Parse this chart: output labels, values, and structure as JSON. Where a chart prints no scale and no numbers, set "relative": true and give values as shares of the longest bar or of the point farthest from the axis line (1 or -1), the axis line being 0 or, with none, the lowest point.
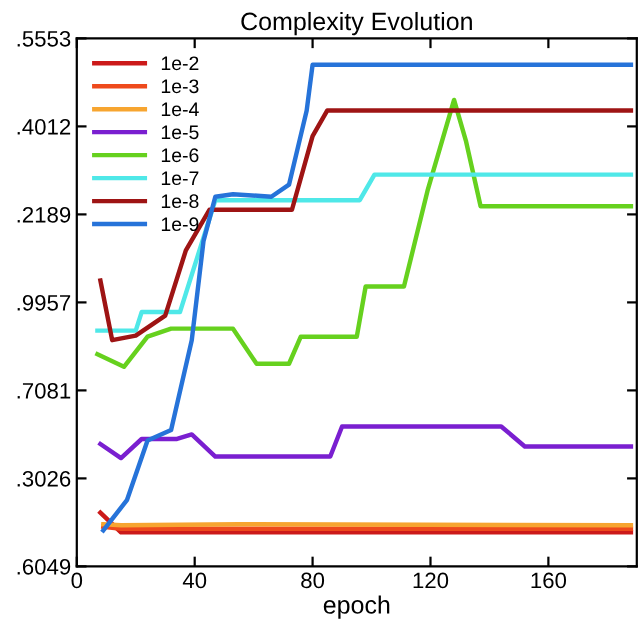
{
  "chart_data": {
    "type": "line",
    "title": "Complexity Evolution",
    "xlabel": "epoch",
    "xlim": [
      0,
      190
    ],
    "xticks": [
      0,
      40,
      80,
      120,
      160
    ],
    "relative": true,
    "annotations": [
      ".6049",
      ".3026",
      ".7081",
      ".9957",
      ".2189",
      ".4012",
      ".5553"
    ],
    "grid": false,
    "legend": "top left",
    "marker": "none",
    "line_style": "solid",
    "series": [
      {
        "name": "1e-2",
        "color": "#cc1a1a",
        "x": [
          8,
          15,
          188
        ],
        "values": [
          0.107,
          0.068,
          0.068
        ]
      },
      {
        "name": "1e-3",
        "color": "#ee4a1c",
        "x": [
          9,
          15,
          188
        ],
        "values": [
          0.079,
          0.075,
          0.075
        ]
      },
      {
        "name": "1e-4",
        "color": "#f7a530",
        "x": [
          9,
          15,
          55,
          188
        ],
        "values": [
          0.084,
          0.082,
          0.084,
          0.082
        ]
      },
      {
        "name": "1e-5",
        "color": "#7a1fd0",
        "x": [
          8,
          15,
          22,
          34,
          39,
          47,
          86,
          90,
          144,
          152,
          188
        ],
        "values": [
          0.244,
          0.216,
          0.254,
          0.254,
          0.263,
          0.219,
          0.219,
          0.279,
          0.279,
          0.239,
          0.239
        ]
      },
      {
        "name": "1e-6",
        "color": "#66d11e",
        "x": [
          7,
          16,
          24,
          32,
          53,
          61,
          72,
          76,
          95,
          98,
          111,
          119,
          128,
          132,
          137,
          188
        ],
        "values": [
          0.423,
          0.398,
          0.458,
          0.474,
          0.474,
          0.404,
          0.404,
          0.458,
          0.458,
          0.558,
          0.558,
          0.749,
          0.93,
          0.849,
          0.718,
          0.718
        ]
      },
      {
        "name": "1e-7",
        "color": "#4fe8e8",
        "x": [
          7,
          20,
          22,
          35,
          47,
          96,
          101,
          188
        ],
        "values": [
          0.47,
          0.47,
          0.507,
          0.507,
          0.73,
          0.73,
          0.781,
          0.781
        ]
      },
      {
        "name": "1e-8",
        "color": "#9e1414",
        "x": [
          8,
          12,
          20,
          30,
          37,
          45,
          73,
          80,
          85,
          188
        ],
        "values": [
          0.57,
          0.451,
          0.46,
          0.5,
          0.63,
          0.711,
          0.711,
          0.858,
          0.909,
          0.909
        ]
      },
      {
        "name": "1e-9",
        "color": "#2673d9",
        "x": [
          9,
          17,
          24,
          32,
          39,
          43,
          47,
          53,
          66,
          72,
          78,
          80,
          188
        ],
        "values": [
          0.072,
          0.132,
          0.251,
          0.272,
          0.451,
          0.649,
          0.737,
          0.742,
          0.737,
          0.761,
          0.909,
          1,
          1
        ]
      }
    ]
  }
}
